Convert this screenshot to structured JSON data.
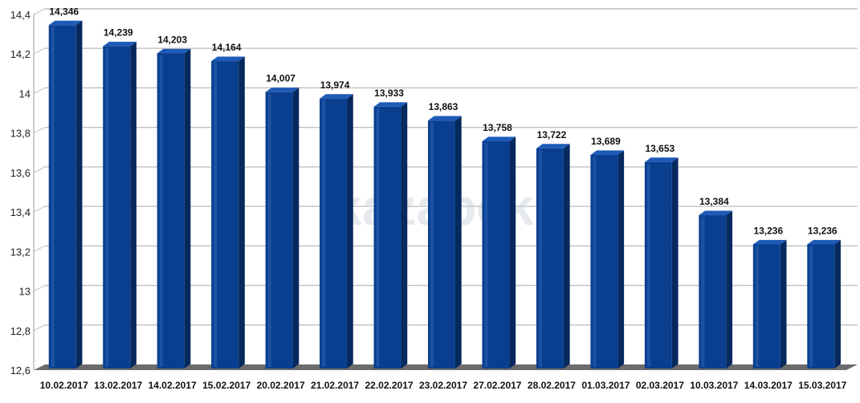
{
  "chart_data": {
    "type": "bar",
    "title": "",
    "xlabel": "",
    "ylabel": "",
    "ylim": [
      12.6,
      14.4
    ],
    "y_ticks": [
      "12,6",
      "12,8",
      "13",
      "13,2",
      "13,4",
      "13,6",
      "13,8",
      "14",
      "14,2",
      "14,4"
    ],
    "grid": true,
    "bar_style": "3d",
    "colors": {
      "bar_front": "#0a3f8f",
      "bar_side": "#06295e",
      "bar_top": "#1e5bb8",
      "floor": "#6b6b6b",
      "gridline": "#c0c0c0"
    },
    "categories": [
      "10.02.2017",
      "13.02.2017",
      "14.02.2017",
      "15.02.2017",
      "20.02.2017",
      "21.02.2017",
      "22.02.2017",
      "23.02.2017",
      "27.02.2017",
      "28.02.2017",
      "01.03.2017",
      "02.03.2017",
      "10.03.2017",
      "14.03.2017",
      "15.03.2017"
    ],
    "values": [
      14.346,
      14.239,
      14.203,
      14.164,
      14.007,
      13.974,
      13.933,
      13.863,
      13.758,
      13.722,
      13.689,
      13.653,
      13.384,
      13.236,
      13.236
    ],
    "data_labels": [
      "14,346",
      "14,239",
      "14,203",
      "14,164",
      "14,007",
      "13,974",
      "13,933",
      "13,863",
      "13,758",
      "13,722",
      "13,689",
      "13,653",
      "13,384",
      "13,236",
      "13,236"
    ]
  },
  "watermark": "kazabek"
}
